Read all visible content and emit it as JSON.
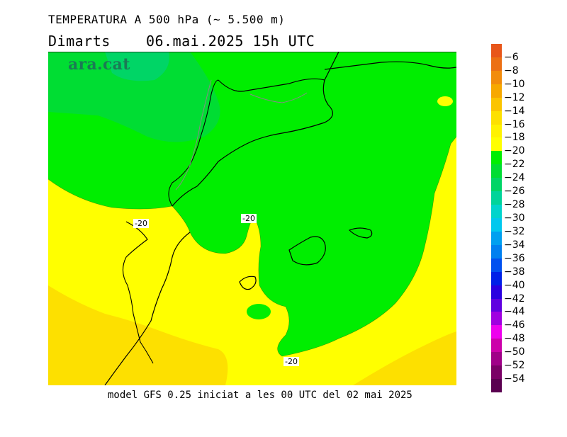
{
  "header": {
    "title": "TEMPERATURA A 500 hPa (~ 5.500 m)",
    "day": "Dimarts",
    "datetime": "06.mai.2025 15h UTC"
  },
  "map": {
    "logo": "ara.cat",
    "contour_labels": [
      "-20",
      "-20",
      "-20"
    ]
  },
  "legend": {
    "labels": [
      "-6",
      "-8",
      "-10",
      "-12",
      "-14",
      "-16",
      "-18",
      "-20",
      "-22",
      "-24",
      "-26",
      "-28",
      "-30",
      "-32",
      "-34",
      "-36",
      "-38",
      "-40",
      "-42",
      "-44",
      "-46",
      "-48",
      "-50",
      "-52",
      "-54"
    ],
    "colors": [
      "#e8561a",
      "#ec7014",
      "#f28c0c",
      "#f7a800",
      "#fbc400",
      "#fde000",
      "#fff200",
      "#ffff00",
      "#00ee00",
      "#00dd33",
      "#00d566",
      "#00d49a",
      "#00d4cc",
      "#00c8ee",
      "#00a0f0",
      "#0080f0",
      "#0050f0",
      "#0020e8",
      "#2a00e0",
      "#6000e0",
      "#a000e0",
      "#ee00ee",
      "#cc00aa",
      "#a00088",
      "#7a0066",
      "#5a0050"
    ]
  },
  "footer": {
    "text": "model GFS 0.25 iniciat a les 00 UTC del 02 mai 2025"
  }
}
